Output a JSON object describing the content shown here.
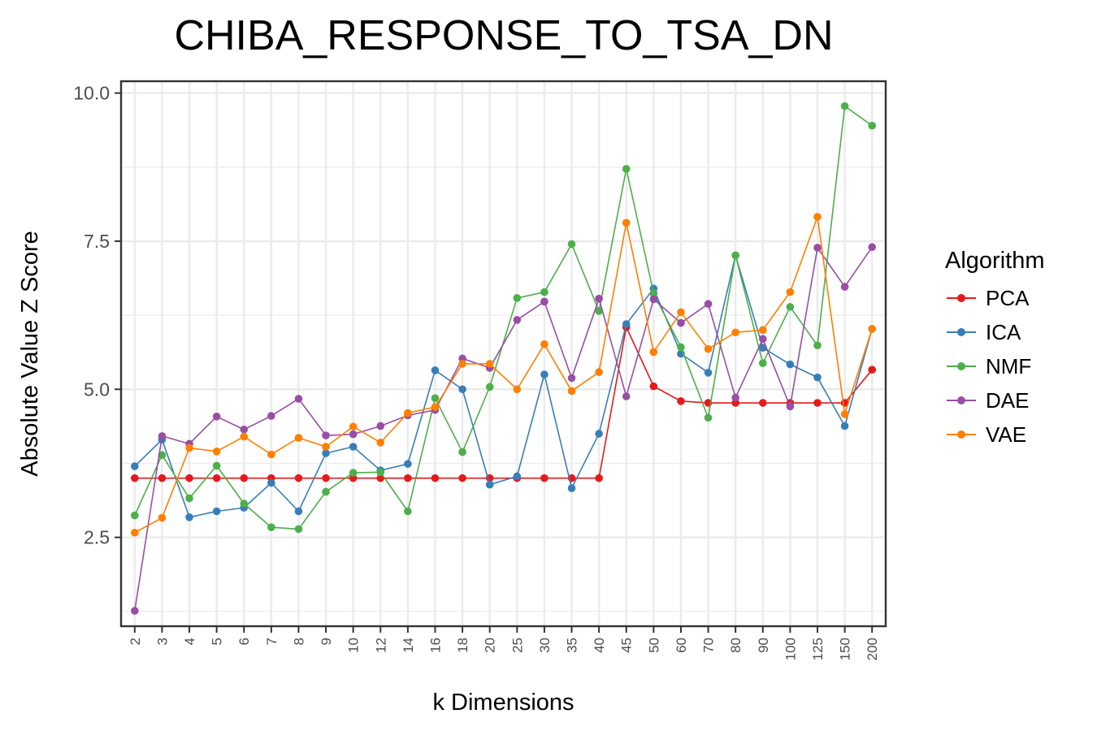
{
  "chart_data": {
    "type": "line",
    "title": "CHIBA_RESPONSE_TO_TSA_DN",
    "xlabel": "k Dimensions",
    "ylabel": "Absolute Value Z Score",
    "ylim": [
      1.0,
      10.2
    ],
    "yticks": [
      "2.5",
      "5.0",
      "7.5",
      "10.0"
    ],
    "yticks_values": [
      2.5,
      5.0,
      7.5,
      10.0
    ],
    "categories": [
      "2",
      "3",
      "4",
      "5",
      "6",
      "7",
      "8",
      "9",
      "10",
      "12",
      "14",
      "16",
      "18",
      "20",
      "25",
      "30",
      "35",
      "40",
      "45",
      "50",
      "60",
      "70",
      "80",
      "90",
      "100",
      "125",
      "150",
      "200"
    ],
    "grid": true,
    "legend": {
      "title": "Algorithm",
      "position": "right"
    },
    "series": [
      {
        "name": "PCA",
        "color": "#E41A1C",
        "values": [
          3.5,
          3.5,
          3.5,
          3.5,
          3.5,
          3.5,
          3.5,
          3.5,
          3.5,
          3.5,
          3.5,
          3.5,
          3.5,
          3.5,
          3.5,
          3.5,
          3.5,
          3.5,
          6.05,
          5.05,
          4.8,
          4.77,
          4.77,
          4.77,
          4.77,
          4.77,
          4.77,
          5.33
        ]
      },
      {
        "name": "ICA",
        "color": "#377EB8",
        "values": [
          3.7,
          4.15,
          2.84,
          2.94,
          3.0,
          3.42,
          2.94,
          3.92,
          4.03,
          3.63,
          3.74,
          5.32,
          5.0,
          3.39,
          3.53,
          5.25,
          3.33,
          4.25,
          6.1,
          6.7,
          5.6,
          5.28,
          7.26,
          5.7,
          5.42,
          5.2,
          4.38,
          6.02
        ]
      },
      {
        "name": "NMF",
        "color": "#4DAF4A",
        "values": [
          2.87,
          3.89,
          3.16,
          3.71,
          3.07,
          2.67,
          2.64,
          3.27,
          3.59,
          3.6,
          2.94,
          4.85,
          3.94,
          5.04,
          6.54,
          6.64,
          7.45,
          6.32,
          8.72,
          6.62,
          5.71,
          4.52,
          7.26,
          5.44,
          6.39,
          5.74,
          9.78,
          9.45
        ]
      },
      {
        "name": "DAE",
        "color": "#984EA3",
        "values": [
          1.26,
          4.21,
          4.08,
          4.54,
          4.32,
          4.55,
          4.84,
          4.22,
          4.24,
          4.38,
          4.56,
          4.65,
          5.52,
          5.36,
          6.17,
          6.48,
          5.19,
          6.53,
          4.88,
          6.52,
          6.12,
          6.44,
          4.86,
          5.85,
          4.71,
          7.39,
          6.73,
          7.4
        ]
      },
      {
        "name": "VAE",
        "color": "#FF7F00",
        "values": [
          2.58,
          2.83,
          4.01,
          3.95,
          4.2,
          3.9,
          4.18,
          4.03,
          4.37,
          4.1,
          4.6,
          4.7,
          5.43,
          5.43,
          5.0,
          5.76,
          4.97,
          5.29,
          7.81,
          5.63,
          6.3,
          5.68,
          5.96,
          6.0,
          6.64,
          7.91,
          4.58,
          6.02
        ]
      }
    ]
  }
}
